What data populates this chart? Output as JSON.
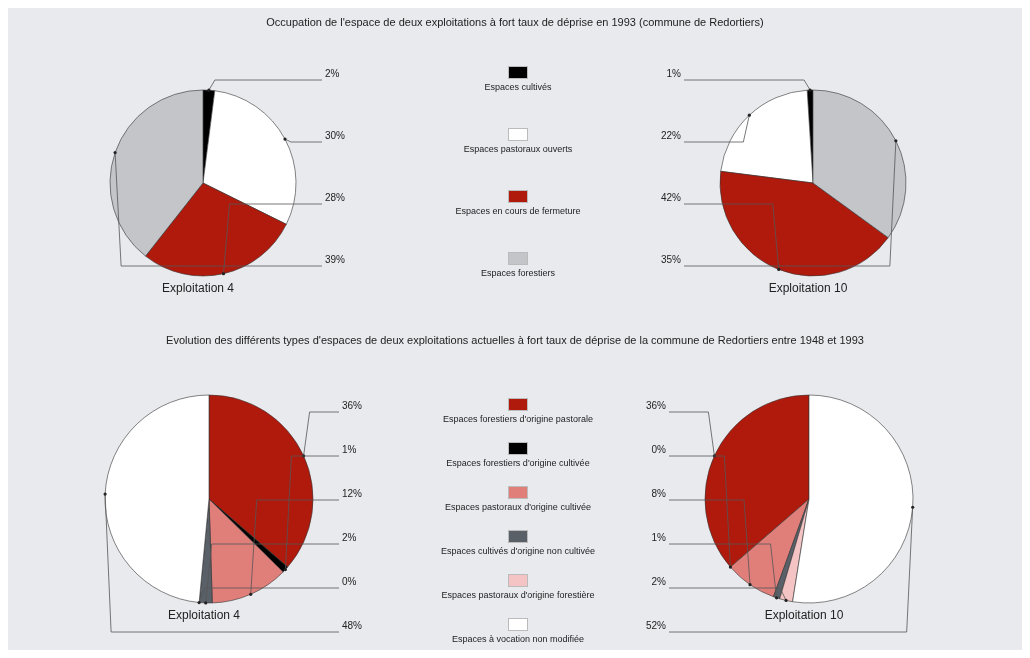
{
  "chart_data": [
    {
      "type": "pie",
      "title": "Occupation de l'espace de deux exploitations à fort taux de déprise  en 1993 (commune de Redortiers)",
      "legend": "right",
      "categories": [
        "Espaces cultivés",
        "Espaces pastoraux ouverts",
        "Espaces en cours de fermeture",
        "Espaces forestiers"
      ],
      "colors": [
        "#000000",
        "#ffffff",
        "#b01a0c",
        "#c3c5c9"
      ],
      "series": [
        {
          "name": "Exploitation 4",
          "values": [
            2,
            30,
            28,
            39
          ],
          "value_labels": [
            "2%",
            "30%",
            "28%",
            "39%"
          ]
        },
        {
          "name": "Exploitation 10",
          "values": [
            1,
            22,
            42,
            35
          ],
          "value_labels": [
            "1%",
            "22%",
            "42%",
            "35%"
          ]
        }
      ]
    },
    {
      "type": "pie",
      "title": "Evolution des différents types d'espaces de deux  exploitations actuelles à fort taux de déprise de la commune de Redortiers entre 1948 et 1993",
      "legend": "right",
      "categories": [
        "Espaces forestiers d'origine pastorale",
        "Espaces forestiers d'origine cultivée",
        "Espaces pastoraux d'origine cultivée",
        "Espaces cultivés d'origine non cultivée",
        "Espaces pastoraux d'origine forestière",
        "Espaces à vocation non modifiée"
      ],
      "colors": [
        "#b01a0c",
        "#000000",
        "#e07f7a",
        "#5a6068",
        "#f4c4c4",
        "#ffffff"
      ],
      "series": [
        {
          "name": "Exploitation 4",
          "values": [
            36,
            1,
            12,
            2,
            0,
            48
          ],
          "value_labels": [
            "36%",
            "1%",
            "12%",
            "2%",
            "0%",
            "48%"
          ]
        },
        {
          "name": "Exploitation 10",
          "values": [
            36,
            0,
            8,
            1,
            2,
            52
          ],
          "value_labels": [
            "36%",
            "0%",
            "8%",
            "1%",
            "2%",
            "52%"
          ]
        }
      ]
    }
  ]
}
